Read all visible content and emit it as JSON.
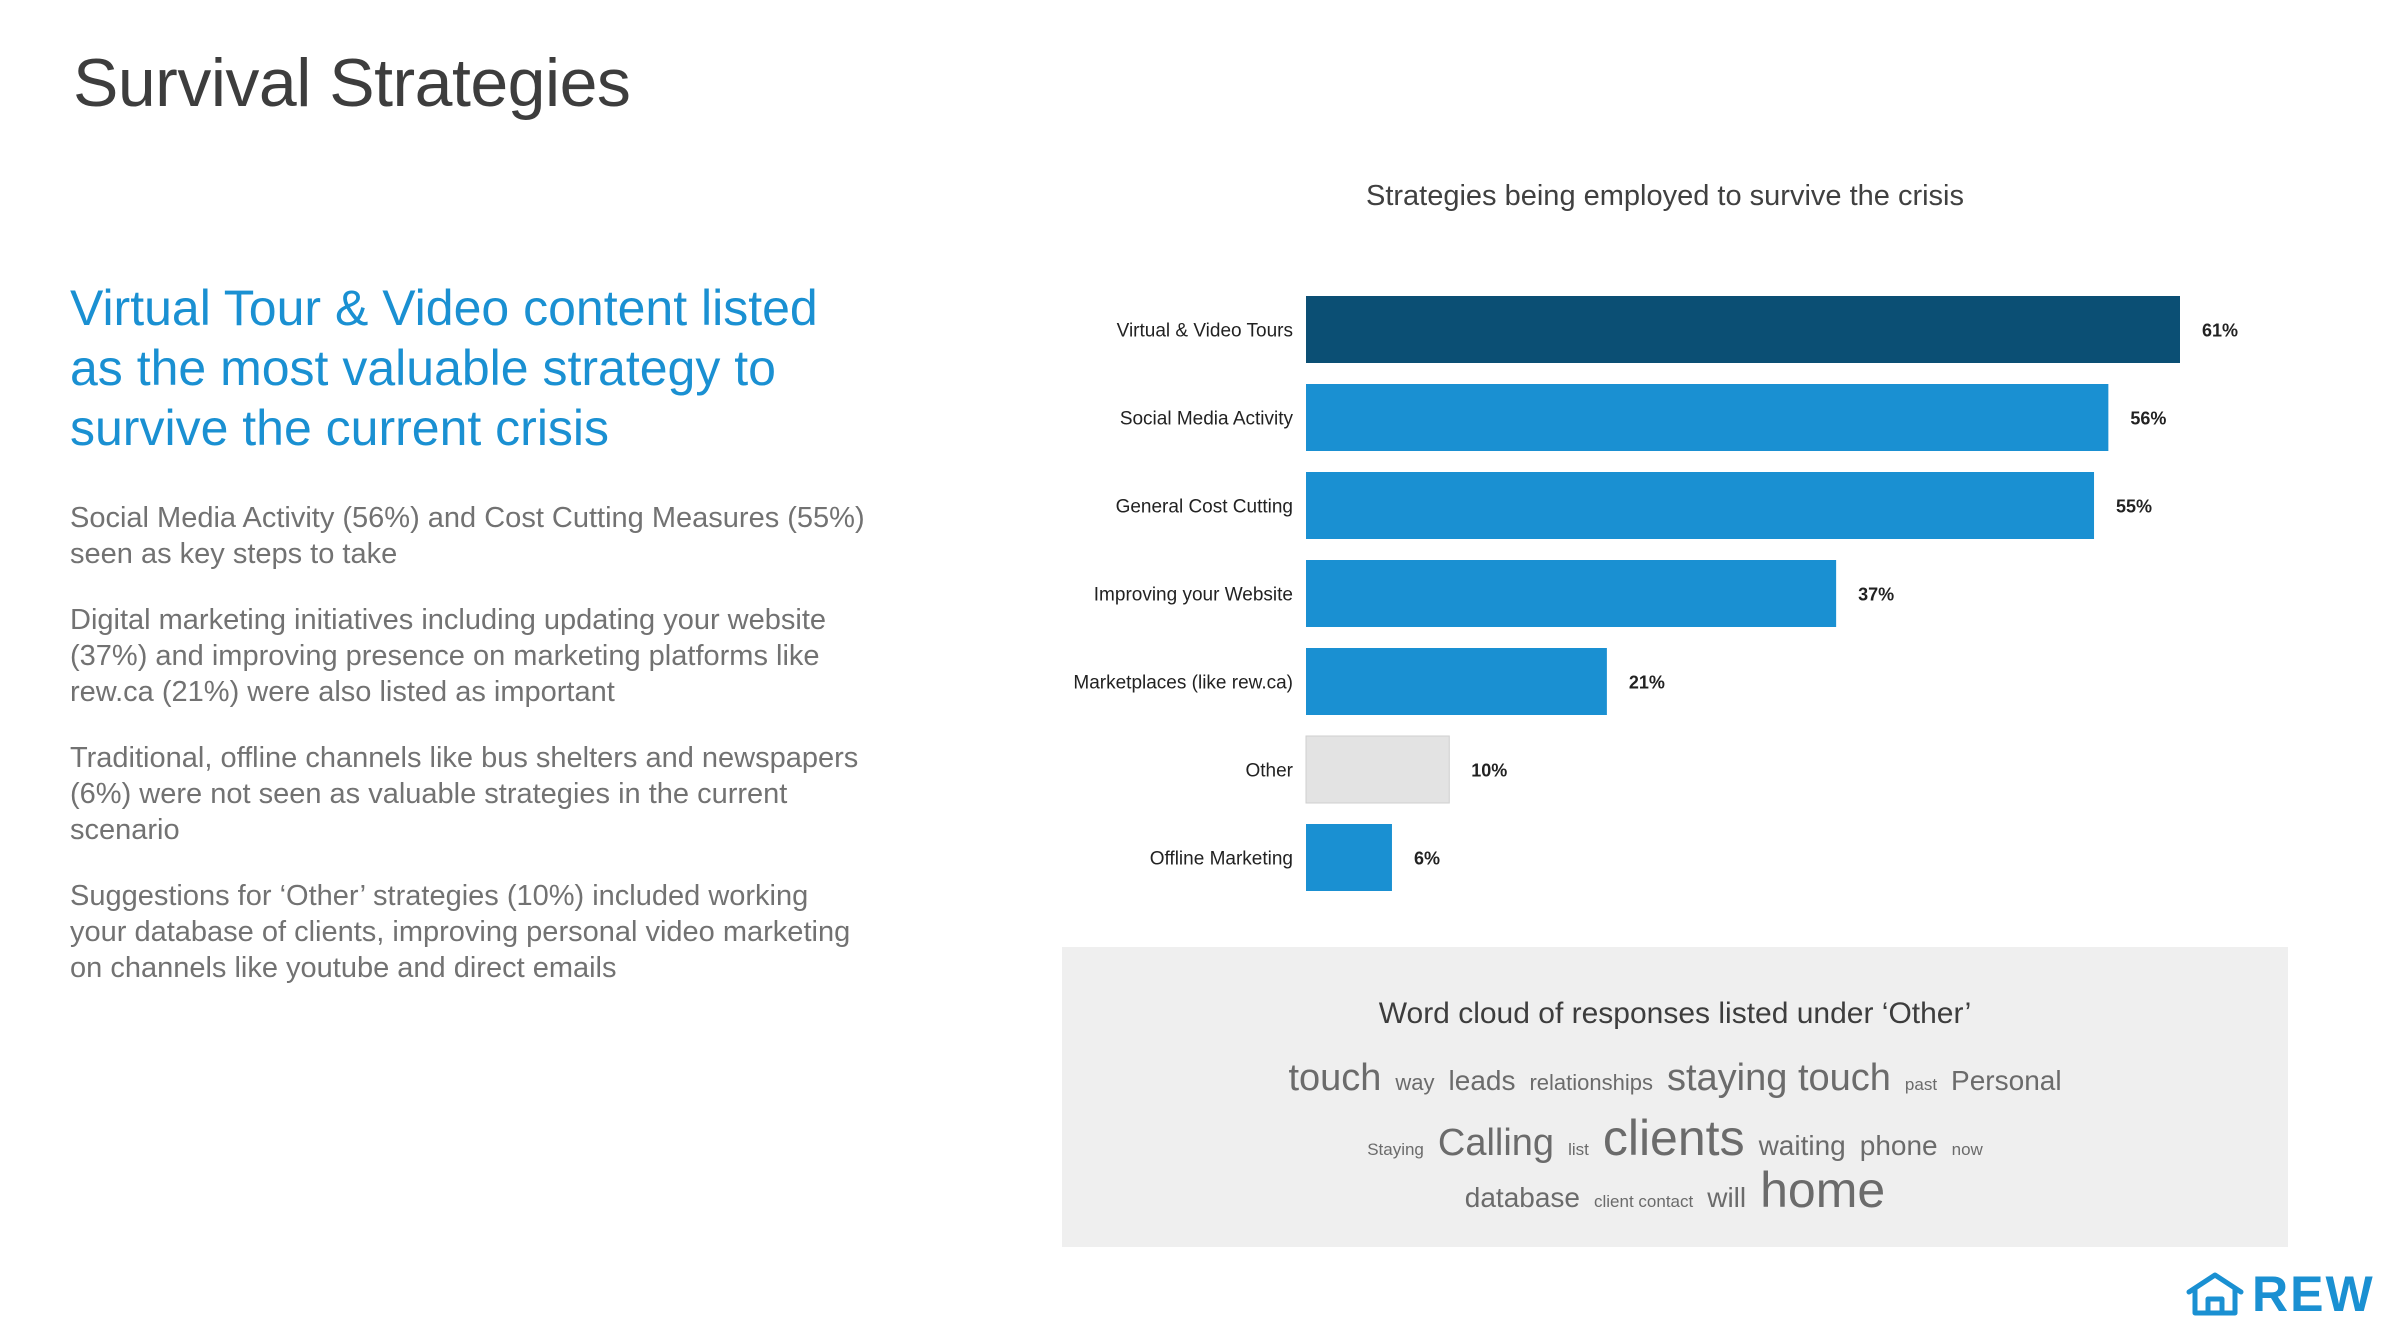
{
  "slide": {
    "title": "Survival Strategies",
    "headline": "Virtual Tour & Video content listed as the most valuable strategy to survive the current crisis",
    "bullets": [
      "Social Media Activity (56%) and Cost Cutting Measures (55%) seen as key steps to take",
      "Digital marketing initiatives including updating your website (37%) and improving presence on marketing platforms like rew.ca (21%) were also listed as important",
      "Traditional, offline channels like bus shelters and newspapers (6%) were not seen as valuable strategies in the current scenario",
      "Suggestions for ‘Other’ strategies (10%) included working your database of clients, improving personal video marketing on channels like youtube and direct emails"
    ]
  },
  "colors": {
    "highlight": "#0b4f74",
    "primary": "#1a90d2",
    "other": "#e3e3e3",
    "headline": "#1a90d2"
  },
  "chart_data": {
    "type": "bar",
    "orientation": "horizontal",
    "title": "Strategies being employed to survive the crisis",
    "categories": [
      "Virtual & Video Tours",
      "Social Media Activity",
      "General Cost Cutting",
      "Improving your Website",
      "Marketplaces (like rew.ca)",
      "Other",
      "Offline Marketing"
    ],
    "values": [
      61,
      56,
      55,
      37,
      21,
      10,
      6
    ],
    "value_labels": [
      "61%",
      "56%",
      "55%",
      "37%",
      "21%",
      "10%",
      "6%"
    ],
    "unit": "%",
    "bar_colors": [
      "#0b4f74",
      "#1a90d2",
      "#1a90d2",
      "#1a90d2",
      "#1a90d2",
      "#e3e3e3",
      "#1a90d2"
    ],
    "xlim": [
      0,
      61
    ],
    "grid": false,
    "legend": "none"
  },
  "word_cloud": {
    "title": "Word cloud of responses listed under ‘Other’",
    "rows": [
      [
        {
          "text": "touch",
          "weight": 4
        },
        {
          "text": "way",
          "weight": 1
        },
        {
          "text": "leads",
          "weight": 2
        },
        {
          "text": "relationships",
          "weight": 1
        },
        {
          "text": "staying touch",
          "weight": 4
        },
        {
          "text": "past",
          "weight": 0
        },
        {
          "text": "Personal",
          "weight": 2
        }
      ],
      [
        {
          "text": "Staying",
          "weight": 0
        },
        {
          "text": "Calling",
          "weight": 4
        },
        {
          "text": "list",
          "weight": 0
        },
        {
          "text": "clients",
          "weight": 5
        },
        {
          "text": "waiting",
          "weight": 2
        },
        {
          "text": "phone",
          "weight": 2
        },
        {
          "text": "now",
          "weight": 0
        }
      ],
      [
        {
          "text": "database",
          "weight": 2
        },
        {
          "text": "client contact",
          "weight": 0
        },
        {
          "text": "will",
          "weight": 2
        },
        {
          "text": "home",
          "weight": 5
        }
      ]
    ]
  },
  "logo": {
    "text": "REW",
    "icon": "house-outline-icon"
  }
}
